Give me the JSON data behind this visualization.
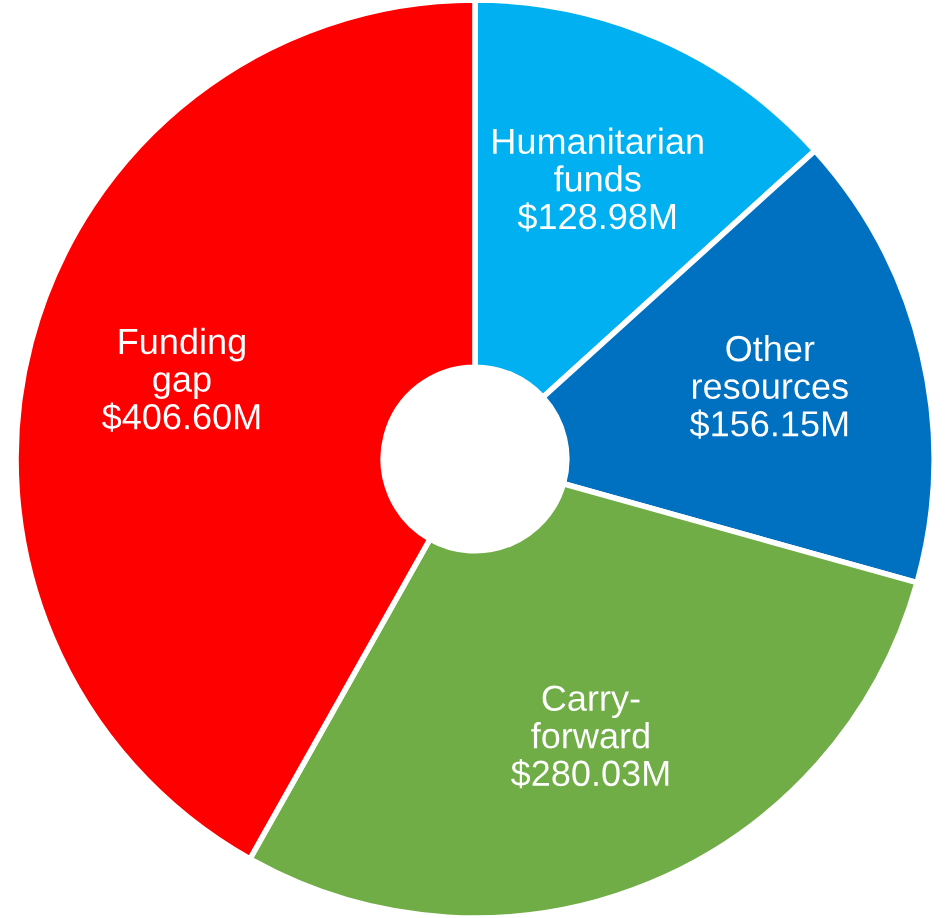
{
  "chart_data": {
    "type": "donut",
    "categories": [
      "Humanitarian\nfunds",
      "Other\nresources",
      "Carry-\nforward",
      "Funding\ngap"
    ],
    "values": [
      128.98,
      156.15,
      280.03,
      406.6
    ],
    "value_labels": [
      "$128.98M",
      "$156.15M",
      "$280.03M",
      "$406.60M"
    ],
    "colors": [
      "#00b0f0",
      "#0070c0",
      "#70ad47",
      "#ff0000"
    ],
    "legend": false
  }
}
